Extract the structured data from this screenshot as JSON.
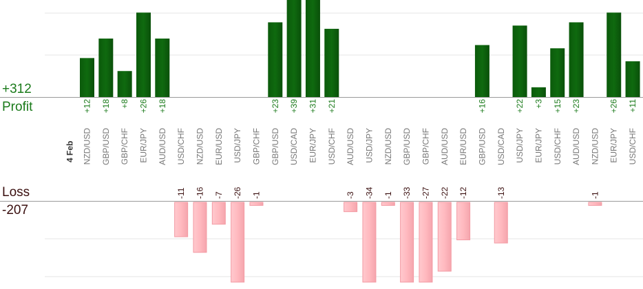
{
  "summary": {
    "profit_total": "+312",
    "profit_label": "Profit",
    "loss_label": "Loss",
    "loss_total": "-207"
  },
  "colors": {
    "profit_bar": "#0f6a0f",
    "profit_text": "#1a7a1a",
    "loss_bar": "#ffb9bf",
    "loss_text": "#3a0f0f",
    "axis": "#999999",
    "grid": "#e6e6e6",
    "category_text": "#777777"
  },
  "chart_data": {
    "type": "bar",
    "date_label": "4 Feb",
    "categories": [
      "NZD/USD",
      "GBP/USD",
      "GBP/CHF",
      "EUR/JPY",
      "AUD/USD",
      "USD/CHF",
      "NZD/USD",
      "EUR/USD",
      "USD/JPY",
      "GBP/CHF",
      "GBP/USD",
      "USD/CAD",
      "EUR/JPY",
      "USD/CHF",
      "AUD/USD",
      "USD/JPY",
      "NZD/USD",
      "GBP/USD",
      "GBP/CHF",
      "AUD/USD",
      "EUR/USD",
      "GBP/USD",
      "USD/CAD",
      "USD/JPY",
      "EUR/JPY",
      "USD/CHF",
      "AUD/USD",
      "NZD/USD",
      "EUR/JPY",
      "USD/CHF"
    ],
    "series": [
      {
        "values": [
          12,
          18,
          8,
          26,
          18,
          null,
          null,
          null,
          null,
          null,
          23,
          39,
          31,
          21,
          null,
          null,
          null,
          null,
          null,
          null,
          null,
          16,
          null,
          22,
          3,
          15,
          23,
          null,
          26,
          11
        ],
        "labels": [
          "+12",
          "+18",
          "+8",
          "+26",
          "+18",
          "",
          "",
          "",
          "",
          "",
          "+23",
          "+39",
          "+31",
          "+21",
          "",
          "",
          "",
          "",
          "",
          "",
          "",
          "+16",
          "",
          "+22",
          "+3",
          "+15",
          "+23",
          "",
          "+26",
          "+11"
        ]
      },
      {
        "values": [
          null,
          null,
          null,
          null,
          null,
          -11,
          -16,
          -7,
          -26,
          -1,
          null,
          null,
          null,
          null,
          -3,
          -34,
          -1,
          -33,
          -27,
          -22,
          -12,
          null,
          -13,
          null,
          null,
          null,
          null,
          -1,
          null,
          null
        ],
        "labels": [
          "",
          "",
          "",
          "",
          "",
          "-11",
          "-16",
          "-7",
          "-26",
          "-1",
          "",
          "",
          "",
          "",
          "-3",
          "-34",
          "-1",
          "-33",
          "-27",
          "-22",
          "-12",
          "",
          "-13",
          "",
          "",
          "",
          "",
          "-1",
          "",
          ""
        ]
      }
    ],
    "grid": true
  }
}
